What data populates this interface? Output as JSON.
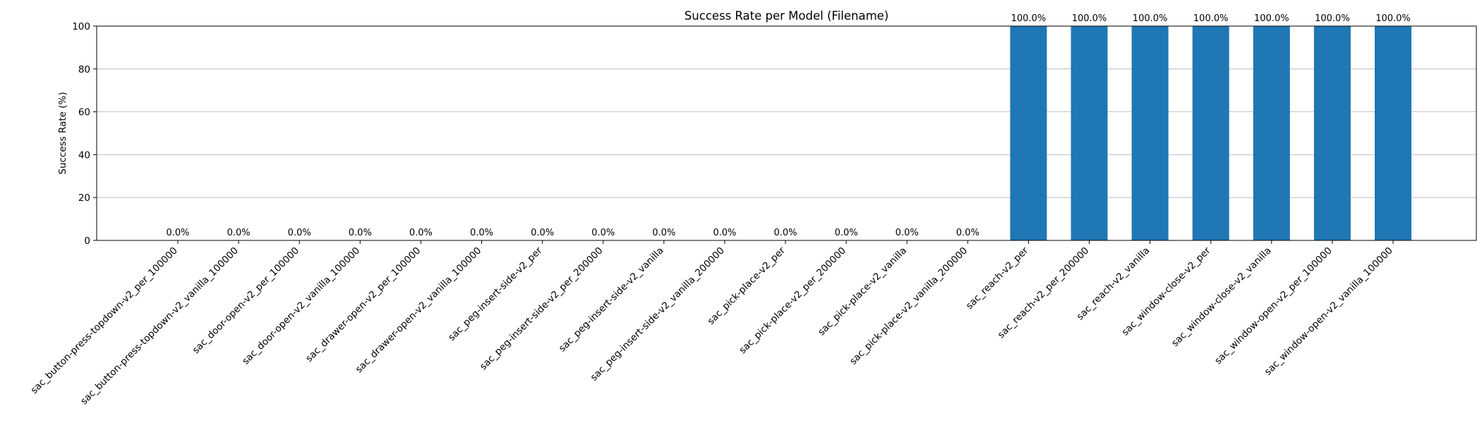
{
  "chart_data": {
    "type": "bar",
    "title": "Success Rate per Model (Filename)",
    "xlabel": "",
    "ylabel": "Success Rate (%)",
    "ylim": [
      0,
      100
    ],
    "yticks": [
      0,
      20,
      40,
      60,
      80,
      100
    ],
    "grid": "y",
    "bar_color": "#1f77b4",
    "categories": [
      "sac_button-press-topdown-v2_per_100000",
      "sac_button-press-topdown-v2_vanilla_100000",
      "sac_door-open-v2_per_100000",
      "sac_door-open-v2_vanilla_100000",
      "sac_drawer-open-v2_per_100000",
      "sac_drawer-open-v2_vanilla_100000",
      "sac_peg-insert-side-v2_per",
      "sac_peg-insert-side-v2_per_200000",
      "sac_peg-insert-side-v2_vanilla",
      "sac_peg-insert-side-v2_vanilla_200000",
      "sac_pick-place-v2_per",
      "sac_pick-place-v2_per_200000",
      "sac_pick-place-v2_vanilla",
      "sac_pick-place-v2_vanilla_200000",
      "sac_reach-v2_per",
      "sac_reach-v2_per_200000",
      "sac_reach-v2_vanilla",
      "sac_window-close-v2_per",
      "sac_window-close-v2_vanilla",
      "sac_window-open-v2_per_100000",
      "sac_window-open-v2_vanilla_100000"
    ],
    "values": [
      0,
      0,
      0,
      0,
      0,
      0,
      0,
      0,
      0,
      0,
      0,
      0,
      0,
      0,
      100,
      100,
      100,
      100,
      100,
      100,
      100
    ],
    "data_labels": [
      "0.0%",
      "0.0%",
      "0.0%",
      "0.0%",
      "0.0%",
      "0.0%",
      "0.0%",
      "0.0%",
      "0.0%",
      "0.0%",
      "0.0%",
      "0.0%",
      "0.0%",
      "0.0%",
      "100.0%",
      "100.0%",
      "100.0%",
      "100.0%",
      "100.0%",
      "100.0%",
      "100.0%"
    ]
  }
}
